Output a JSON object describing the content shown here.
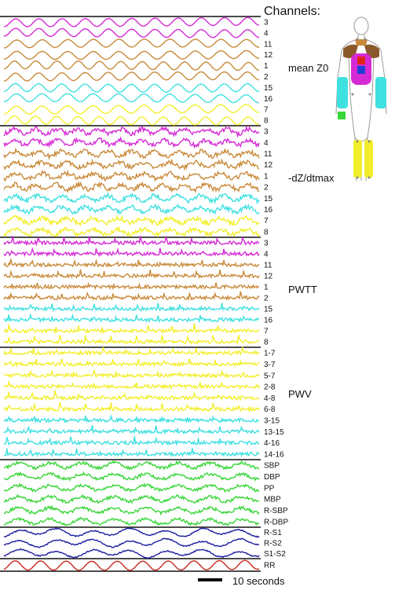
{
  "chart_data": {
    "type": "line",
    "title": "Channels:",
    "scale_label": "10 seconds",
    "colors": {
      "magenta": "#d62ad6",
      "orange": "#c98a3a",
      "cyan": "#3fe0e0",
      "yellow": "#f2ef2a",
      "green": "#38d638",
      "blue": "#1c1ca0",
      "red": "#c8281e"
    },
    "groups": [
      {
        "name": "mean Z0",
        "channels": [
          {
            "label": "3",
            "color": "magenta"
          },
          {
            "label": "4",
            "color": "magenta"
          },
          {
            "label": "11",
            "color": "orange"
          },
          {
            "label": "12",
            "color": "orange"
          },
          {
            "label": "1",
            "color": "orange"
          },
          {
            "label": "2",
            "color": "orange"
          },
          {
            "label": "15",
            "color": "cyan"
          },
          {
            "label": "16",
            "color": "cyan"
          },
          {
            "label": "7",
            "color": "yellow"
          },
          {
            "label": "8",
            "color": "yellow"
          }
        ]
      },
      {
        "name": "-dZ/dtmax",
        "channels": [
          {
            "label": "3",
            "color": "magenta"
          },
          {
            "label": "4",
            "color": "magenta"
          },
          {
            "label": "11",
            "color": "orange"
          },
          {
            "label": "12",
            "color": "orange"
          },
          {
            "label": "1",
            "color": "orange"
          },
          {
            "label": "2",
            "color": "orange"
          },
          {
            "label": "15",
            "color": "cyan"
          },
          {
            "label": "16",
            "color": "cyan"
          },
          {
            "label": "7",
            "color": "yellow"
          },
          {
            "label": "8",
            "color": "yellow"
          }
        ]
      },
      {
        "name": "PWTT",
        "channels": [
          {
            "label": "3",
            "color": "magenta"
          },
          {
            "label": "4",
            "color": "magenta"
          },
          {
            "label": "11",
            "color": "orange"
          },
          {
            "label": "12",
            "color": "orange"
          },
          {
            "label": "1",
            "color": "orange"
          },
          {
            "label": "2",
            "color": "orange"
          },
          {
            "label": "15",
            "color": "cyan"
          },
          {
            "label": "16",
            "color": "cyan"
          },
          {
            "label": "7",
            "color": "yellow"
          },
          {
            "label": "8",
            "color": "yellow"
          }
        ]
      },
      {
        "name": "PWV",
        "channels": [
          {
            "label": "1-7",
            "color": "yellow"
          },
          {
            "label": "3-7",
            "color": "yellow"
          },
          {
            "label": "5-7",
            "color": "yellow"
          },
          {
            "label": "2-8",
            "color": "yellow"
          },
          {
            "label": "4-8",
            "color": "yellow"
          },
          {
            "label": "6-8",
            "color": "yellow"
          },
          {
            "label": "3-15",
            "color": "cyan"
          },
          {
            "label": "13-15",
            "color": "cyan"
          },
          {
            "label": "4-16",
            "color": "cyan"
          },
          {
            "label": "14-16",
            "color": "cyan"
          }
        ]
      },
      {
        "name": "",
        "channels": [
          {
            "label": "SBP",
            "color": "green"
          },
          {
            "label": "DBP",
            "color": "green"
          },
          {
            "label": "PP",
            "color": "green"
          },
          {
            "label": "MBP",
            "color": "green"
          },
          {
            "label": "R-SBP",
            "color": "green"
          },
          {
            "label": "R-DBP",
            "color": "green"
          }
        ]
      },
      {
        "name": "",
        "channels": [
          {
            "label": "R-S1",
            "color": "blue"
          },
          {
            "label": "R-S2",
            "color": "blue"
          },
          {
            "label": "S1-S2",
            "color": "blue"
          }
        ]
      },
      {
        "name": "",
        "channels": [
          {
            "label": "RR",
            "color": "red"
          }
        ]
      }
    ]
  }
}
